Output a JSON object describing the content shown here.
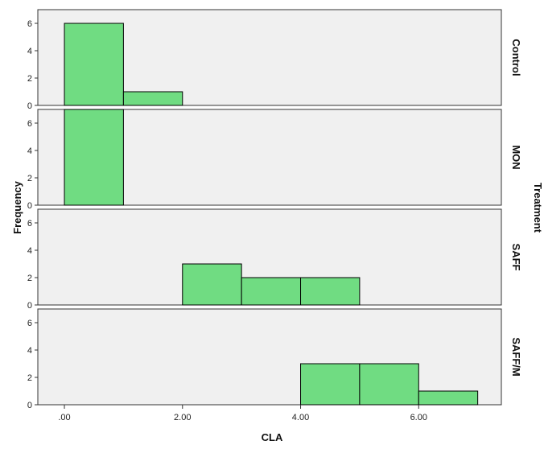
{
  "chart_data": {
    "type": "bar",
    "subtype": "faceted histogram",
    "xlabel": "CLA",
    "ylabel": "Frequency",
    "facet_label": "Treatment",
    "xlim": [
      -0.45,
      7.4
    ],
    "ylim": [
      0,
      7
    ],
    "x_ticks": [
      0,
      2,
      4,
      6
    ],
    "x_tick_labels": [
      ".00",
      "2.00",
      "4.00",
      "6.00"
    ],
    "y_ticks": [
      0,
      2,
      4,
      6
    ],
    "y_tick_labels": [
      "0",
      "2",
      "4",
      "6"
    ],
    "bin_width": 1,
    "grid": false,
    "colors": {
      "bar_fill": "#70dc82",
      "bar_stroke": "#000000",
      "panel_bg": "#f0f0f0",
      "panel_border": "#333333"
    },
    "panels": [
      {
        "name": "Control",
        "bins": [
          {
            "x0": 0,
            "x1": 1,
            "count": 6
          },
          {
            "x0": 1,
            "x1": 2,
            "count": 1
          }
        ]
      },
      {
        "name": "MON",
        "bins": [
          {
            "x0": 0,
            "x1": 1,
            "count": 7
          }
        ]
      },
      {
        "name": "SAFF",
        "bins": [
          {
            "x0": 2,
            "x1": 3,
            "count": 3
          },
          {
            "x0": 3,
            "x1": 4,
            "count": 2
          },
          {
            "x0": 4,
            "x1": 5,
            "count": 2
          }
        ]
      },
      {
        "name": "SAFF/M",
        "bins": [
          {
            "x0": 4,
            "x1": 5,
            "count": 3
          },
          {
            "x0": 5,
            "x1": 6,
            "count": 3
          },
          {
            "x0": 6,
            "x1": 7,
            "count": 1
          }
        ]
      }
    ]
  }
}
